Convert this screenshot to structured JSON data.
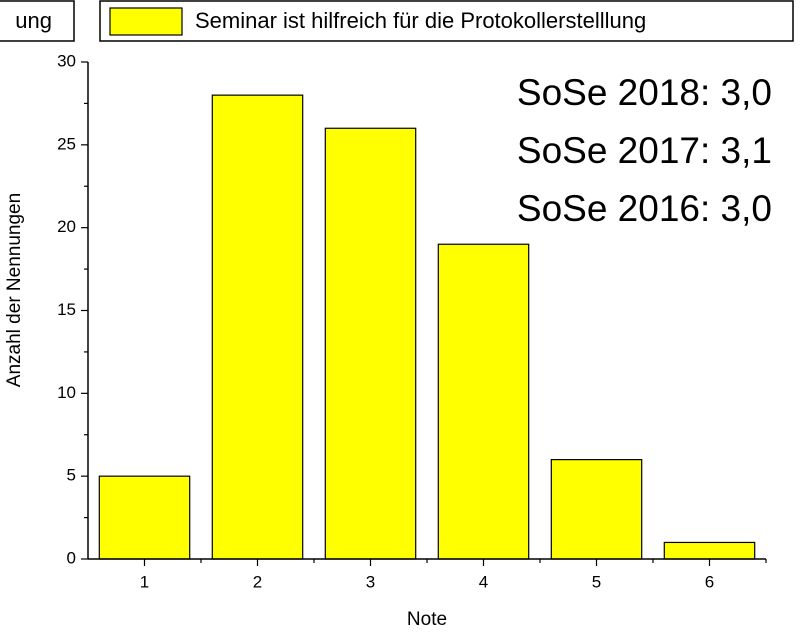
{
  "chart_data": {
    "type": "bar",
    "legend_fragment": "ung",
    "series": [
      {
        "name": "Seminar ist hilfreich für die Protokollerstelllung",
        "color": "#ffff00",
        "values": [
          5,
          28,
          26,
          19,
          6,
          1
        ]
      }
    ],
    "categories": [
      "1",
      "2",
      "3",
      "4",
      "5",
      "6"
    ],
    "ylim": [
      0,
      30
    ],
    "yticks": [
      0,
      5,
      10,
      15,
      20,
      25,
      30
    ],
    "xlabel": "Note",
    "ylabel": "Anzahl der Nennungen",
    "annotations": [
      {
        "text": "SoSe 2018: 3,0",
        "color": "#ff0000"
      },
      {
        "text": "SoSe 2017: 3,1",
        "color": "#000000"
      },
      {
        "text": "SoSe 2016: 3,0",
        "color": "#000000"
      }
    ]
  }
}
